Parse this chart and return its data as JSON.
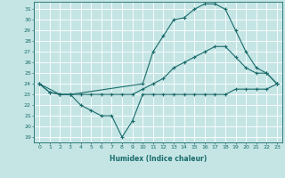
{
  "title": "",
  "xlabel": "Humidex (Indice chaleur)",
  "ylabel": "",
  "bg_color": "#c5e5e5",
  "line_color": "#1a6b6b",
  "xlim": [
    -0.5,
    23.5
  ],
  "ylim": [
    18.5,
    31.7
  ],
  "xticks": [
    0,
    1,
    2,
    3,
    4,
    5,
    6,
    7,
    8,
    9,
    10,
    11,
    12,
    13,
    14,
    15,
    16,
    17,
    18,
    19,
    20,
    21,
    22,
    23
  ],
  "yticks": [
    19,
    20,
    21,
    22,
    23,
    24,
    25,
    26,
    27,
    28,
    29,
    30,
    31
  ],
  "lines": [
    {
      "x": [
        0,
        1,
        2,
        3,
        4,
        5,
        6,
        7,
        8,
        9,
        10,
        11,
        12,
        13,
        14,
        15,
        16,
        17,
        18,
        19,
        20,
        21,
        22,
        23
      ],
      "y": [
        24,
        23.2,
        23,
        23,
        22,
        21.5,
        21,
        21,
        19,
        20.5,
        23,
        23,
        23,
        23,
        23,
        23,
        23,
        23,
        23,
        23.5,
        23.5,
        23.5,
        23.5,
        24
      ]
    },
    {
      "x": [
        0,
        1,
        2,
        3,
        4,
        5,
        6,
        7,
        8,
        9,
        10,
        11,
        12,
        13,
        14,
        15,
        16,
        17,
        18,
        19,
        20,
        21,
        22,
        23
      ],
      "y": [
        24,
        23.2,
        23,
        23,
        23,
        23,
        23,
        23,
        23,
        23,
        23.5,
        24,
        24.5,
        25.5,
        26,
        26.5,
        27,
        27.5,
        27.5,
        26.5,
        25.5,
        25,
        25,
        24
      ]
    },
    {
      "x": [
        0,
        2,
        3,
        10,
        11,
        12,
        13,
        14,
        15,
        16,
        17,
        18,
        19,
        20,
        21,
        22,
        23
      ],
      "y": [
        24,
        23,
        23,
        24,
        27,
        28.5,
        30,
        30.2,
        31,
        31.5,
        31.5,
        31,
        29,
        27,
        25.5,
        25,
        24
      ]
    }
  ]
}
